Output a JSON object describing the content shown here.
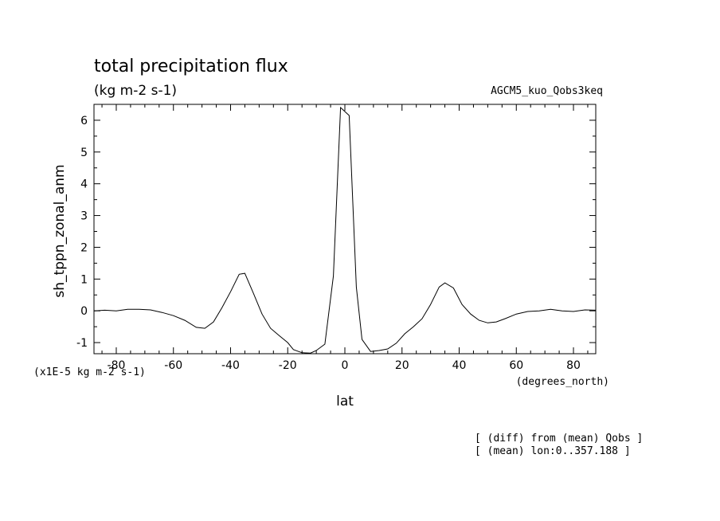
{
  "chart_data": {
    "type": "line",
    "title": "total precipitation flux",
    "units": "(kg m-2 s-1)",
    "experiment": "AGCM5_kuo_Qobs3keq",
    "xlabel": "lat",
    "ylabel": "sh_tppn_zonal_anm",
    "x_units": "(degrees_north)",
    "y_scale_note": "(x1E-5 kg m-2 s-1)",
    "notes": [
      "[ (diff) from (mean) Qobs ]",
      "[ (mean) lon:0..357.188 ]"
    ],
    "xlim": [
      -87.8,
      87.8
    ],
    "ylim": [
      -1.35,
      6.5
    ],
    "x_ticks": [
      -80,
      -60,
      -40,
      -20,
      0,
      20,
      40,
      60,
      80
    ],
    "x_tick_labels": [
      "-80",
      "-60",
      "-40",
      "-20",
      "0",
      "20",
      "40",
      "60",
      "80"
    ],
    "y_ticks": [
      -1,
      0,
      1,
      2,
      3,
      4,
      5,
      6
    ],
    "y_tick_labels": [
      "-1",
      "0",
      "1",
      "2",
      "3",
      "4",
      "5",
      "6"
    ],
    "grid": false,
    "series": [
      {
        "x": [
          -87.8,
          -84,
          -80,
          -76,
          -72,
          -68,
          -64,
          -60,
          -56,
          -52,
          -49,
          -46,
          -43,
          -40,
          -37,
          -35,
          -32,
          -29,
          -26,
          -23,
          -20,
          -18,
          -15,
          -12,
          -10,
          -7,
          -4,
          -1.5,
          1.5,
          4,
          6,
          9,
          12,
          15,
          18,
          21,
          24,
          27,
          30,
          33,
          35,
          38,
          41,
          44,
          47,
          50,
          53,
          56,
          60,
          64,
          68,
          72,
          76,
          80,
          84,
          87.8
        ],
        "y": [
          0.0,
          0.02,
          0.0,
          0.05,
          0.05,
          0.03,
          -0.05,
          -0.15,
          -0.3,
          -0.52,
          -0.55,
          -0.35,
          0.1,
          0.6,
          1.15,
          1.18,
          0.55,
          -0.1,
          -0.55,
          -0.78,
          -1.0,
          -1.22,
          -1.32,
          -1.33,
          -1.25,
          -1.05,
          1.1,
          6.4,
          6.15,
          0.75,
          -0.9,
          -1.28,
          -1.25,
          -1.2,
          -1.02,
          -0.72,
          -0.5,
          -0.25,
          0.2,
          0.75,
          0.88,
          0.72,
          0.2,
          -0.1,
          -0.3,
          -0.38,
          -0.35,
          -0.25,
          -0.1,
          -0.02,
          0.0,
          0.05,
          0.0,
          -0.02,
          0.03,
          0.02
        ]
      }
    ]
  }
}
